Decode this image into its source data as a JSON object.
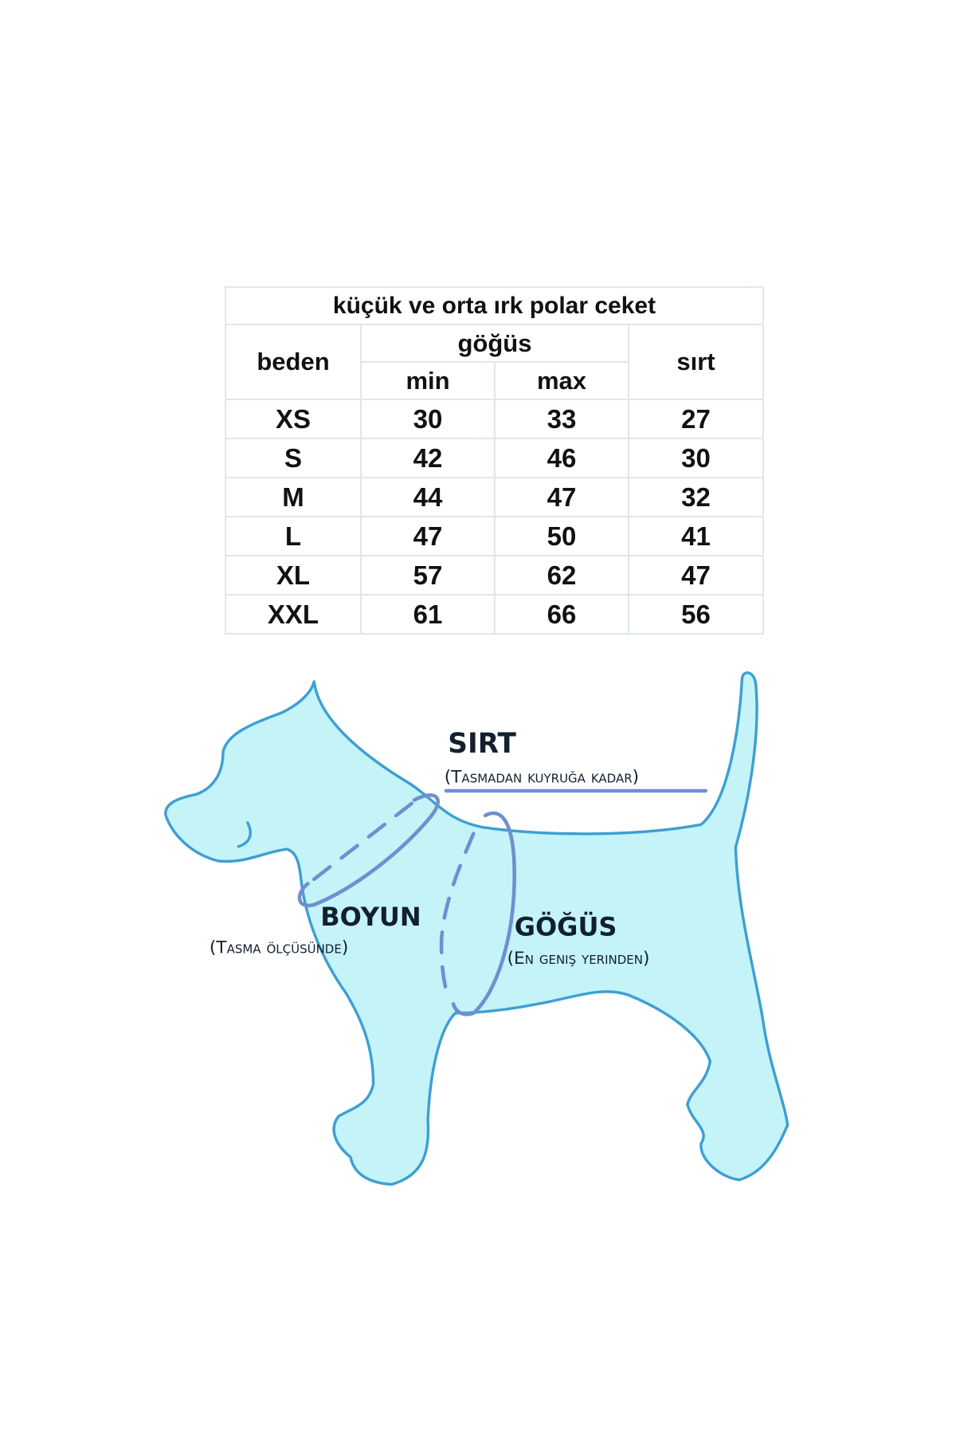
{
  "table": {
    "title": "küçük ve orta ırk polar ceket",
    "headers": {
      "size": "beden",
      "chest": "göğüs",
      "min": "min",
      "max": "max",
      "back": "sırt"
    },
    "rows": [
      {
        "size": "XS",
        "min": "30",
        "max": "33",
        "back": "27"
      },
      {
        "size": "S",
        "min": "42",
        "max": "46",
        "back": "30"
      },
      {
        "size": "M",
        "min": "44",
        "max": "47",
        "back": "32"
      },
      {
        "size": "L",
        "min": "47",
        "max": "50",
        "back": "41"
      },
      {
        "size": "XL",
        "min": "57",
        "max": "62",
        "back": "47"
      },
      {
        "size": "XXL",
        "min": "61",
        "max": "66",
        "back": "56"
      }
    ]
  },
  "diagram": {
    "back_label": "SIRT",
    "back_note": "(Tasmadan kuyruğa kadar)",
    "neck_label": "BOYUN",
    "neck_note": "(Tasma ölçüsünde)",
    "chest_label": "GÖĞÜS",
    "chest_note": "(En geniş yerinden)",
    "colors": {
      "dog_fill": "#c4f3f8",
      "dog_outline": "#3e9fd2",
      "measure_line": "#6f8fd0"
    }
  }
}
